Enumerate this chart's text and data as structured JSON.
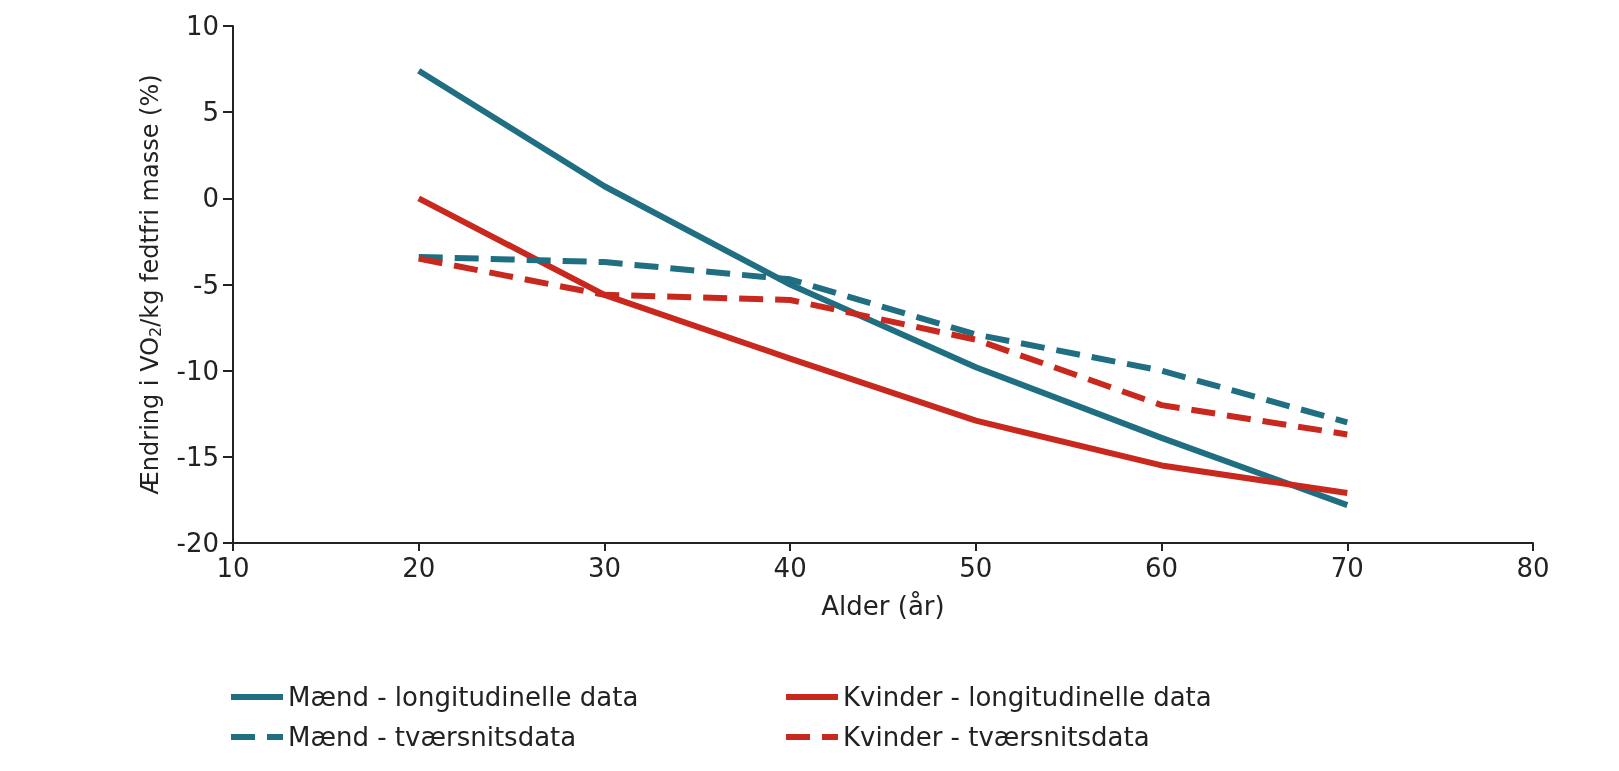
{
  "chart_data": {
    "type": "line",
    "xlabel": "Alder (år)",
    "ylabel": "Ændring i VO$_{2}$/kg fedtfri masse (%)",
    "xlim": [
      10,
      80
    ],
    "xticks": [
      10,
      20,
      30,
      40,
      50,
      60,
      70,
      80
    ],
    "ylim": [
      -20,
      10
    ],
    "yticks": [
      -20,
      -15,
      -10,
      -5,
      0,
      5,
      10
    ],
    "grid": false,
    "legend": "bottom",
    "marker": "none",
    "x": [
      20,
      30,
      40,
      50,
      60,
      70
    ],
    "series": [
      {
        "name": "Mænd - longitudinelle data",
        "color": "#1f6e82",
        "line_style": "solid",
        "values": [
          7.4,
          0.7,
          -5,
          -9.8,
          -13.9,
          -17.8
        ]
      },
      {
        "name": "Kvinder - longitudinelle data",
        "color": "#c8281e",
        "line_style": "solid",
        "values": [
          0,
          -5.6,
          -9.3,
          -12.9,
          -15.5,
          -17.1
        ]
      },
      {
        "name": "Mænd - tværsnitsdata",
        "color": "#1f6e82",
        "line_style": "dashed",
        "values": [
          -3.4,
          -3.7,
          -4.7,
          -7.9,
          -10,
          -13
        ]
      },
      {
        "name": "Kvinder - tværsnitsdata",
        "color": "#c8281e",
        "line_style": "dashed",
        "values": [
          -3.5,
          -5.6,
          -5.9,
          -8.2,
          -12,
          -13.7
        ]
      }
    ]
  }
}
